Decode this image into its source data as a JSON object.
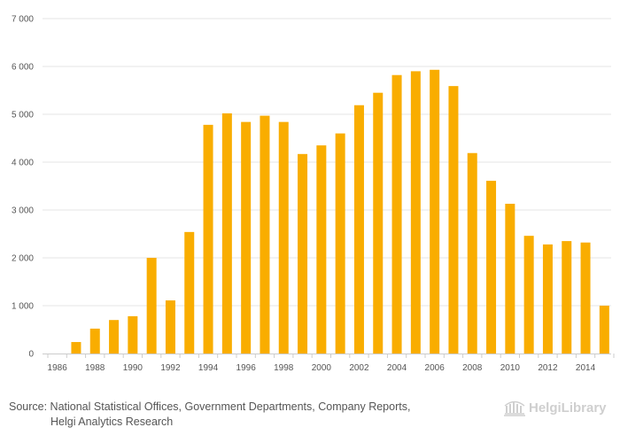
{
  "chart_data": {
    "type": "bar",
    "title": "",
    "xlabel": "",
    "ylabel": "",
    "ylim": [
      0,
      7000
    ],
    "y_ticks": [
      0,
      1000,
      2000,
      3000,
      4000,
      5000,
      6000,
      7000
    ],
    "y_tick_labels": [
      "0",
      "1 000",
      "2 000",
      "3 000",
      "4 000",
      "5 000",
      "6 000",
      "7 000"
    ],
    "x_tick_labels": [
      "1986",
      "1988",
      "1990",
      "1992",
      "1994",
      "1996",
      "1998",
      "2000",
      "2002",
      "2004",
      "2006",
      "2008",
      "2010",
      "2012",
      "2014"
    ],
    "categories": [
      "1986",
      "1987",
      "1988",
      "1989",
      "1990",
      "1991",
      "1992",
      "1993",
      "1994",
      "1995",
      "1996",
      "1997",
      "1998",
      "1999",
      "2000",
      "2001",
      "2002",
      "2003",
      "2004",
      "2005",
      "2006",
      "2007",
      "2008",
      "2009",
      "2010",
      "2011",
      "2012",
      "2013",
      "2014",
      "2015"
    ],
    "values": [
      0,
      240,
      520,
      700,
      780,
      2000,
      1110,
      2540,
      4780,
      5020,
      4840,
      4970,
      4840,
      4170,
      4350,
      4600,
      5190,
      5450,
      5820,
      5900,
      5930,
      5590,
      4190,
      3610,
      3130,
      2460,
      2280,
      2350,
      2320,
      1000
    ],
    "grid": true,
    "bar_color": "#f9ad00"
  },
  "footer": {
    "source_line1": "Source: National Statistical Offices, Government Departments, Company Reports,",
    "source_line2": "Helgi Analytics Research"
  },
  "logo": {
    "text": "HelgiLibrary"
  }
}
